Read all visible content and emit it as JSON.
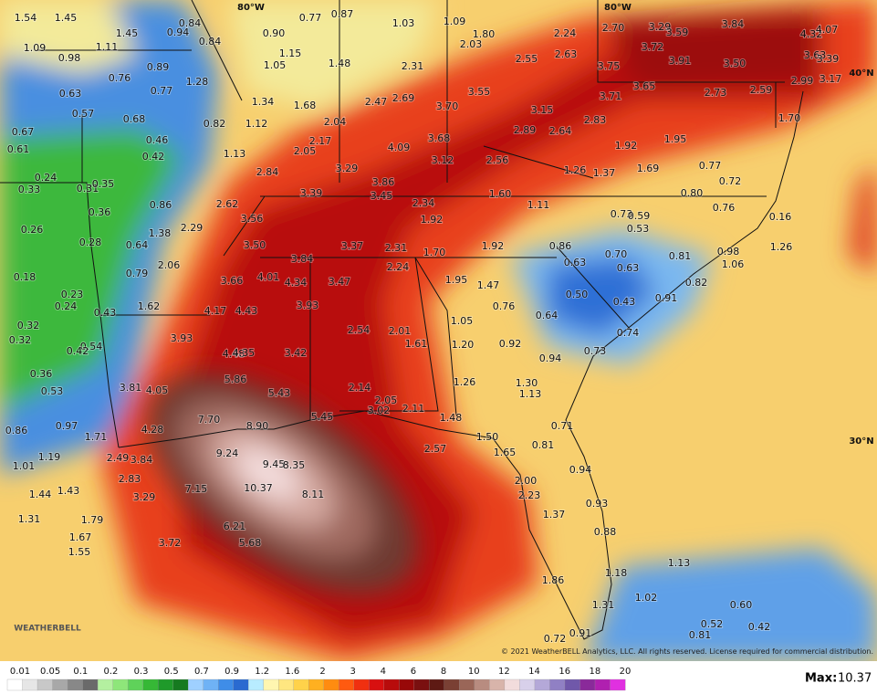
{
  "map": {
    "labels": [
      "1.54",
      "1.45",
      "0.84",
      "0.94",
      "0.77",
      "0.87",
      "1.03",
      "1.09",
      "1.80",
      "2.03",
      "2.24",
      "2.70",
      "3.29",
      "3.59",
      "3.84",
      "4.32",
      "4.07",
      "1.45",
      "0.90",
      "0.84",
      "1.09",
      "1.11",
      "0.98",
      "1.15",
      "1.05",
      "1.48",
      "2.31",
      "2.55",
      "2.63",
      "3.72",
      "3.91",
      "3.50",
      "3.75",
      "3.63",
      "3.39",
      "0.89",
      "0.76",
      "1.28",
      "0.77",
      "0.63",
      "0.57",
      "0.68",
      "0.82",
      "1.12",
      "1.34",
      "1.68",
      "2.04",
      "2.47",
      "2.69",
      "3.70",
      "3.55",
      "3.15",
      "3.71",
      "3.65",
      "2.73",
      "2.59",
      "2.99",
      "3.17",
      "2.83",
      "1.70",
      "0.67",
      "0.61",
      "0.46",
      "0.42",
      "1.13",
      "2.05",
      "2.17",
      "4.09",
      "3.68",
      "2.89",
      "2.64",
      "1.92",
      "1.95",
      "3.12",
      "2.56",
      "3.29",
      "2.84",
      "1.26",
      "1.37",
      "1.69",
      "0.77",
      "0.72",
      "0.24",
      "0.33",
      "0.31",
      "0.35",
      "3.86",
      "3.39",
      "3.45",
      "1.60",
      "0.80",
      "0.86",
      "2.62",
      "2.34",
      "1.11",
      "0.73",
      "0.59",
      "0.76",
      "0.36",
      "3.56",
      "1.92",
      "0.53",
      "0.16",
      "0.26",
      "1.38",
      "2.29",
      "0.28",
      "0.64",
      "3.50",
      "3.37",
      "2.31",
      "1.70",
      "1.92",
      "0.86",
      "0.70",
      "0.81",
      "0.98",
      "1.26",
      "1.06",
      "3.84",
      "2.06",
      "0.79",
      "0.63",
      "0.63",
      "2.24",
      "0.18",
      "3.66",
      "4.01",
      "4.34",
      "3.47",
      "1.95",
      "1.47",
      "0.82",
      "0.23",
      "0.50",
      "0.43",
      "0.91",
      "0.24",
      "1.62",
      "4.17",
      "4.43",
      "3.93",
      "0.76",
      "0.43",
      "0.64",
      "1.05",
      "0.32",
      "2.54",
      "2.01",
      "0.74",
      "0.32",
      "3.93",
      "1.61",
      "1.20",
      "0.92",
      "0.54",
      "0.42",
      "4.48",
      "4.35",
      "3.42",
      "0.73",
      "0.94",
      "0.36",
      "5.86",
      "1.26",
      "1.30",
      "0.53",
      "3.81",
      "4.05",
      "5.43",
      "2.14",
      "1.13",
      "2.05",
      "3.02",
      "2.11",
      "5.45",
      "1.48",
      "7.70",
      "8.90",
      "0.71",
      "0.86",
      "0.97",
      "4.28",
      "1.71",
      "1.50",
      "0.81",
      "9.24",
      "2.57",
      "1.65",
      "2.49",
      "3.84",
      "1.19",
      "9.45",
      "8.35",
      "1.01",
      "0.94",
      "2.83",
      "2.00",
      "10.37",
      "7.15",
      "8.11",
      "1.44",
      "1.43",
      "3.29",
      "2.23",
      "0.93",
      "1.31",
      "1.79",
      "1.37",
      "6.21",
      "1.67",
      "0.88",
      "3.72",
      "5.68",
      "1.55",
      "1.13",
      "1.18",
      "1.86",
      "1.02",
      "1.31",
      "0.60",
      "0.42",
      "0.52",
      "0.81",
      "0.72",
      "0.91"
    ],
    "graticule": [
      "80°W",
      "80°W",
      "40°N",
      "30°N"
    ],
    "logo": "WEATHERBELL"
  },
  "legend": {
    "ticks": [
      "0.01",
      "0.05",
      "0.1",
      "0.2",
      "0.3",
      "0.5",
      "0.7",
      "0.9",
      "1.2",
      "1.6",
      "2",
      "3",
      "4",
      "6",
      "8",
      "10",
      "12",
      "14",
      "16",
      "18",
      "20"
    ]
  },
  "footer": {
    "copyright": "© 2021 WeatherBELL Analytics, LLC. All rights reserved. License required for commercial distribution.",
    "max_label": "Max:",
    "max_value": "10.37"
  }
}
